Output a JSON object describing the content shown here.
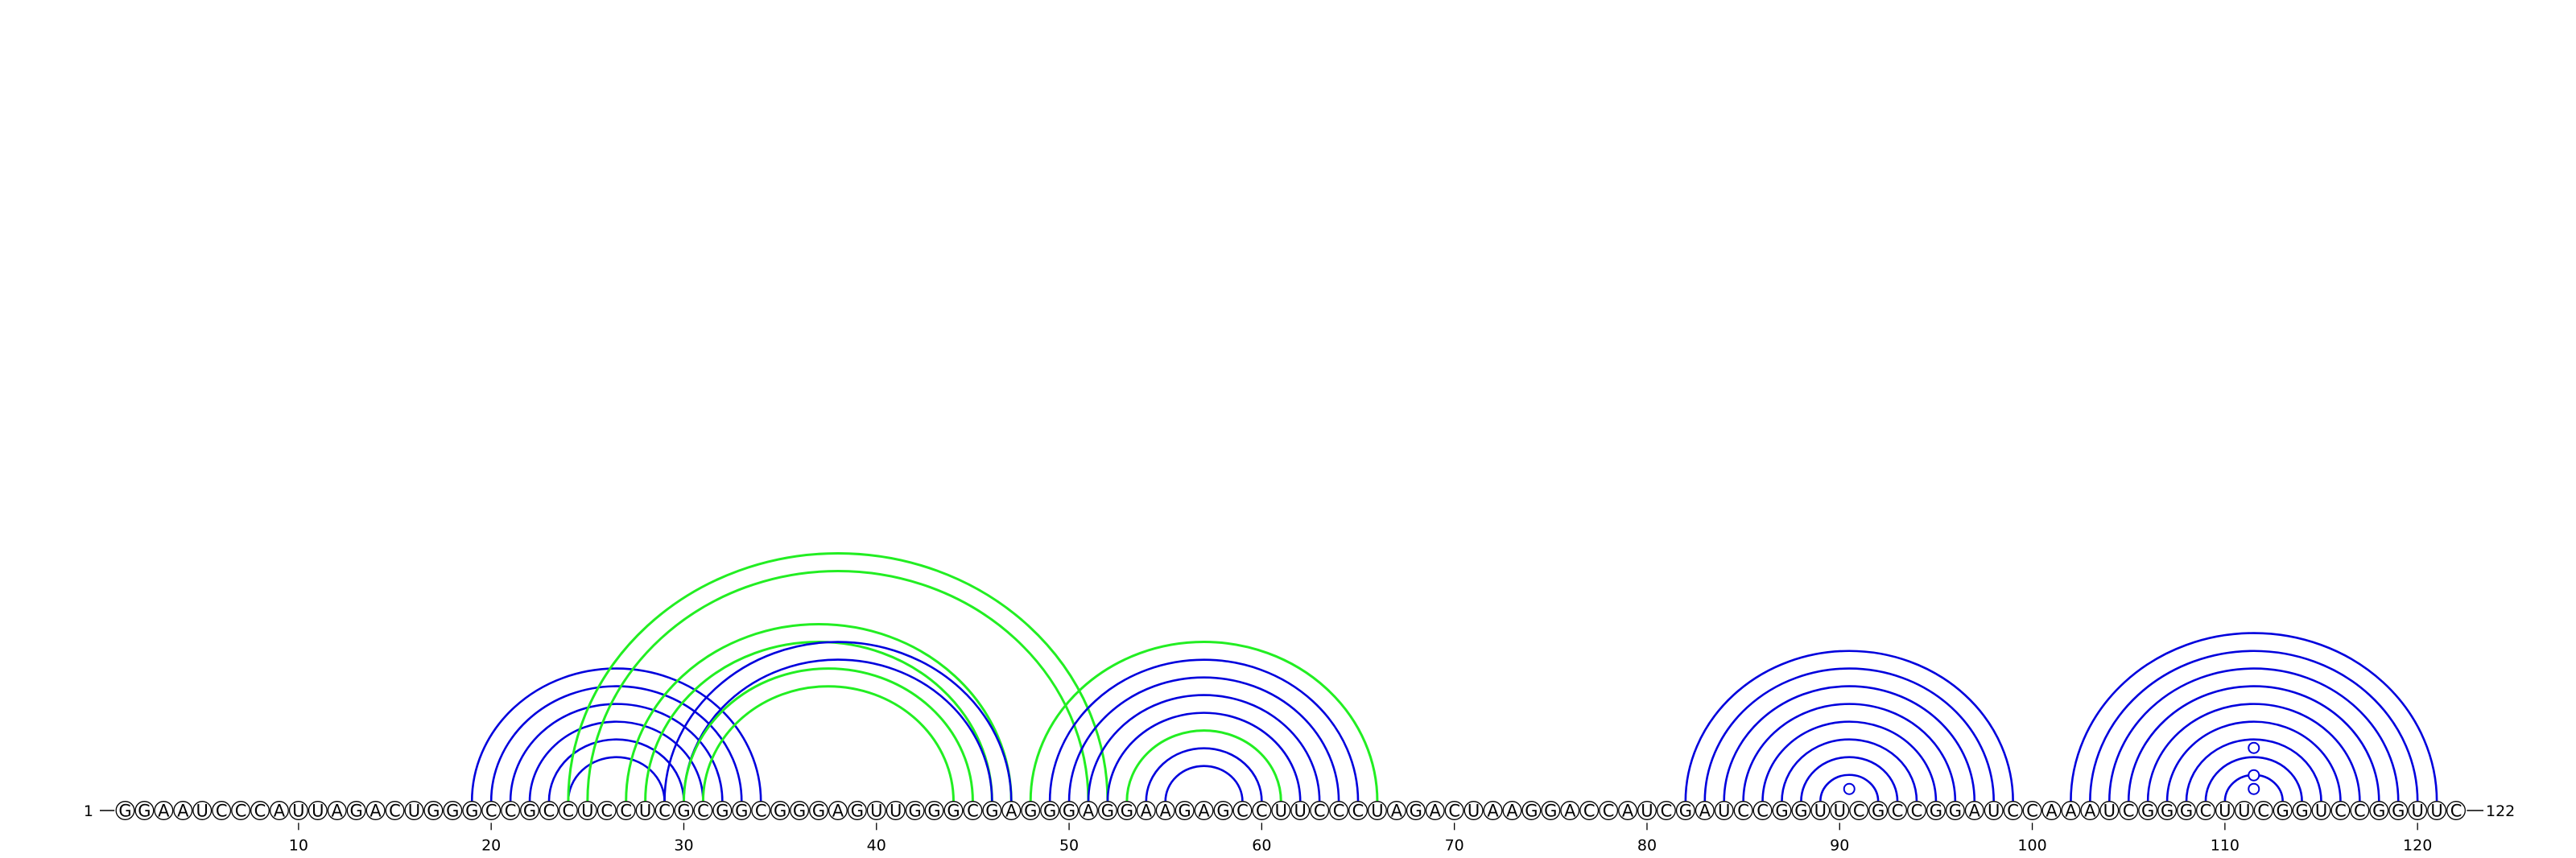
{
  "sequence": "GGAAUCCCAUUAGACUGGGCCGCCUCCUCGCGGCGGGAGUUGGGCGAGGGAGGAAGAGCCUUCCCUAGACUAAGGACCAUCGAUCCGGUUCGCCGGAUCCAAAUCGGGCUUCGGUCCGGUUC",
  "length": 122,
  "start_label": "1",
  "end_label": "122",
  "ticks": [
    "10",
    "20",
    "30",
    "40",
    "50",
    "60",
    "70",
    "80",
    "90",
    "100",
    "110",
    "120"
  ],
  "colors": {
    "blue": "#0000dd",
    "green": "#22ee22",
    "circle_stroke": "#000000"
  },
  "arcs": [
    {
      "i": 19,
      "j": 34,
      "color": "blue"
    },
    {
      "i": 20,
      "j": 33,
      "color": "blue"
    },
    {
      "i": 21,
      "j": 32,
      "color": "blue"
    },
    {
      "i": 22,
      "j": 31,
      "color": "blue"
    },
    {
      "i": 23,
      "j": 30,
      "color": "blue"
    },
    {
      "i": 24,
      "j": 29,
      "color": "blue"
    },
    {
      "i": 24,
      "j": 52,
      "color": "green"
    },
    {
      "i": 25,
      "j": 51,
      "color": "green"
    },
    {
      "i": 27,
      "j": 47,
      "color": "green"
    },
    {
      "i": 28,
      "j": 46,
      "color": "green"
    },
    {
      "i": 29,
      "j": 47,
      "color": "blue"
    },
    {
      "i": 30,
      "j": 46,
      "color": "blue"
    },
    {
      "i": 30,
      "j": 45,
      "color": "green"
    },
    {
      "i": 31,
      "j": 44,
      "color": "green"
    },
    {
      "i": 48,
      "j": 66,
      "color": "green"
    },
    {
      "i": 49,
      "j": 65,
      "color": "blue"
    },
    {
      "i": 50,
      "j": 64,
      "color": "blue"
    },
    {
      "i": 51,
      "j": 63,
      "color": "blue"
    },
    {
      "i": 52,
      "j": 62,
      "color": "blue"
    },
    {
      "i": 53,
      "j": 61,
      "color": "green"
    },
    {
      "i": 54,
      "j": 60,
      "color": "blue"
    },
    {
      "i": 55,
      "j": 59,
      "color": "blue"
    },
    {
      "i": 82,
      "j": 99,
      "color": "blue"
    },
    {
      "i": 83,
      "j": 98,
      "color": "blue"
    },
    {
      "i": 84,
      "j": 97,
      "color": "blue"
    },
    {
      "i": 85,
      "j": 96,
      "color": "blue"
    },
    {
      "i": 86,
      "j": 95,
      "color": "blue"
    },
    {
      "i": 87,
      "j": 94,
      "color": "blue"
    },
    {
      "i": 88,
      "j": 93,
      "color": "blue"
    },
    {
      "i": 89,
      "j": 92,
      "color": "blue"
    },
    {
      "i": 102,
      "j": 121,
      "color": "blue"
    },
    {
      "i": 103,
      "j": 120,
      "color": "blue"
    },
    {
      "i": 104,
      "j": 119,
      "color": "blue"
    },
    {
      "i": 105,
      "j": 118,
      "color": "blue"
    },
    {
      "i": 106,
      "j": 117,
      "color": "blue"
    },
    {
      "i": 107,
      "j": 116,
      "color": "blue"
    },
    {
      "i": 108,
      "j": 115,
      "color": "blue"
    },
    {
      "i": 109,
      "j": 114,
      "color": "blue"
    },
    {
      "i": 110,
      "j": 113,
      "color": "blue"
    }
  ],
  "pseudo_markers": [
    {
      "at": 90.5,
      "level": 1
    },
    {
      "at": 111.5,
      "level": 1
    },
    {
      "at": 111.5,
      "level": 3
    },
    {
      "at": 111.5,
      "level": 7
    }
  ]
}
